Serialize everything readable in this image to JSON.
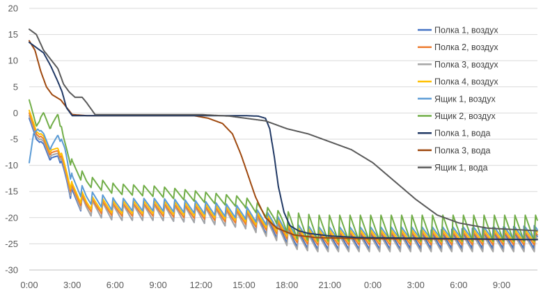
{
  "chart_data": {
    "type": "line",
    "title": "",
    "xlabel": "",
    "ylabel": "",
    "ylim": [
      -30,
      20
    ],
    "yticks": [
      -30,
      -25,
      -20,
      -15,
      -10,
      -5,
      0,
      5,
      10,
      15,
      20
    ],
    "xlim_hours": [
      0,
      35.5
    ],
    "xticks": [
      "0:00",
      "3:00",
      "6:00",
      "9:00",
      "12:00",
      "15:00",
      "18:00",
      "21:00",
      "0:00",
      "3:00",
      "6:00",
      "9:00"
    ],
    "grid": "horizontal",
    "legend_position": "right",
    "series": [
      {
        "name": "Полка 1, воздух",
        "color": "#4472C4",
        "base": [
          [
            0,
            -1
          ],
          [
            0.5,
            -5
          ],
          [
            1,
            -6
          ],
          [
            1.5,
            -9
          ],
          [
            2,
            -8
          ],
          [
            2.3,
            -10
          ],
          [
            3,
            -16
          ],
          [
            4,
            -18
          ],
          [
            6,
            -19
          ],
          [
            9,
            -19
          ],
          [
            12,
            -19.5
          ],
          [
            15,
            -20.5
          ],
          [
            17,
            -22
          ],
          [
            18.5,
            -24
          ],
          [
            20,
            -24.5
          ],
          [
            23,
            -24.5
          ],
          [
            26,
            -24.5
          ],
          [
            35.5,
            -24.5
          ]
        ],
        "osc": [
          [
            0,
            0
          ],
          [
            2.3,
            0.5
          ],
          [
            3,
            1.5
          ],
          [
            35.5,
            1.5
          ]
        ],
        "spikes": [
          [
            26,
            0
          ],
          [
            27,
            3.5
          ],
          [
            35.5,
            4.5
          ]
        ]
      },
      {
        "name": "Полка 2, воздух",
        "color": "#ED7D31",
        "base": [
          [
            0,
            0
          ],
          [
            0.5,
            -4
          ],
          [
            1,
            -5
          ],
          [
            1.5,
            -8
          ],
          [
            2,
            -7
          ],
          [
            2.3,
            -9
          ],
          [
            3,
            -15
          ],
          [
            4,
            -17.5
          ],
          [
            6,
            -18.5
          ],
          [
            9,
            -18.5
          ],
          [
            12,
            -19
          ],
          [
            15,
            -20
          ],
          [
            17,
            -21.5
          ],
          [
            18.5,
            -23.5
          ],
          [
            20,
            -24
          ],
          [
            35.5,
            -24
          ]
        ],
        "osc": [
          [
            0,
            0
          ],
          [
            2.3,
            0.5
          ],
          [
            3,
            1.2
          ],
          [
            35.5,
            1.2
          ]
        ]
      },
      {
        "name": "Полка 3, воздух",
        "color": "#A5A5A5",
        "base": [
          [
            0,
            -0.5
          ],
          [
            0.5,
            -4.5
          ],
          [
            1,
            -5.5
          ],
          [
            1.5,
            -8.5
          ],
          [
            2,
            -7.5
          ],
          [
            2.3,
            -9.5
          ],
          [
            3,
            -15.5
          ],
          [
            4,
            -18
          ],
          [
            6,
            -19
          ],
          [
            9,
            -19
          ],
          [
            12,
            -19.5
          ],
          [
            15,
            -20.5
          ],
          [
            17,
            -22.5
          ],
          [
            18.5,
            -24.5
          ],
          [
            20,
            -25
          ],
          [
            35.5,
            -25
          ]
        ],
        "osc": [
          [
            0,
            0
          ],
          [
            2.3,
            0.5
          ],
          [
            3,
            1.5
          ],
          [
            35.5,
            1.5
          ]
        ]
      },
      {
        "name": "Полка 4, воздух",
        "color": "#FFC000",
        "base": [
          [
            0,
            0.5
          ],
          [
            0.5,
            -3.5
          ],
          [
            1,
            -4.5
          ],
          [
            1.5,
            -7.5
          ],
          [
            2,
            -6.5
          ],
          [
            2.3,
            -8.5
          ],
          [
            3,
            -14.5
          ],
          [
            4,
            -17
          ],
          [
            6,
            -18
          ],
          [
            9,
            -18
          ],
          [
            12,
            -18.5
          ],
          [
            15,
            -19.5
          ],
          [
            17,
            -21
          ],
          [
            18.5,
            -23
          ],
          [
            20,
            -23.5
          ],
          [
            35.5,
            -23.5
          ]
        ],
        "osc": [
          [
            0,
            0
          ],
          [
            2.3,
            0.5
          ],
          [
            3,
            1.2
          ],
          [
            35.5,
            1.2
          ]
        ]
      },
      {
        "name": "Ящик 1, воздух",
        "color": "#5B9BD5",
        "base": [
          [
            0,
            -9.5
          ],
          [
            0.3,
            -4
          ],
          [
            0.6,
            -3
          ],
          [
            1,
            -4
          ],
          [
            1.5,
            -7
          ],
          [
            2,
            -4
          ],
          [
            2.5,
            -7
          ],
          [
            3,
            -13
          ],
          [
            4,
            -16
          ],
          [
            6,
            -17.5
          ],
          [
            9,
            -17.5
          ],
          [
            12,
            -18
          ],
          [
            15,
            -19
          ],
          [
            17,
            -20.5
          ],
          [
            18.5,
            -22.5
          ],
          [
            20,
            -23
          ],
          [
            35.5,
            -23
          ]
        ],
        "osc": [
          [
            0,
            0
          ],
          [
            2.3,
            0.5
          ],
          [
            3,
            1.2
          ],
          [
            35.5,
            1.2
          ]
        ]
      },
      {
        "name": "Ящик 2, воздух",
        "color": "#70AD47",
        "base": [
          [
            0,
            2.5
          ],
          [
            0.5,
            -2.5
          ],
          [
            1,
            0
          ],
          [
            1.5,
            -3
          ],
          [
            2,
            0
          ],
          [
            2.4,
            -5
          ],
          [
            3,
            -10
          ],
          [
            4,
            -13
          ],
          [
            6,
            -14.5
          ],
          [
            9,
            -15
          ],
          [
            12,
            -16
          ],
          [
            15,
            -17
          ],
          [
            17,
            -19.5
          ],
          [
            18.5,
            -21.5
          ],
          [
            20,
            -22
          ],
          [
            35.5,
            -22
          ]
        ],
        "osc": [
          [
            0,
            0
          ],
          [
            2.3,
            0.5
          ],
          [
            3,
            1
          ],
          [
            17,
            1
          ],
          [
            18.5,
            2.5
          ],
          [
            35.5,
            2.5
          ]
        ]
      },
      {
        "name": "Полка 1, вода",
        "color": "#203864",
        "base": [
          [
            0,
            13.5
          ],
          [
            0.5,
            12.5
          ],
          [
            1,
            11.5
          ],
          [
            1.5,
            9
          ],
          [
            2,
            6
          ],
          [
            2.3,
            4
          ],
          [
            2.6,
            1
          ],
          [
            3,
            -0.5
          ],
          [
            5,
            -0.5
          ],
          [
            10,
            -0.5
          ],
          [
            15,
            -0.5
          ],
          [
            16,
            -0.6
          ],
          [
            16.5,
            -1
          ],
          [
            16.8,
            -3
          ],
          [
            17.1,
            -8
          ],
          [
            17.4,
            -14
          ],
          [
            17.8,
            -19
          ],
          [
            18.2,
            -21.5
          ],
          [
            18.8,
            -22.5
          ],
          [
            19.5,
            -23
          ],
          [
            21,
            -23.5
          ],
          [
            23,
            -23.8
          ],
          [
            35.5,
            -24.2
          ]
        ],
        "osc": [
          [
            0,
            0
          ],
          [
            35.5,
            0
          ]
        ]
      },
      {
        "name": "Полка 3, вода",
        "color": "#9E480E",
        "base": [
          [
            0,
            13.8
          ],
          [
            0.4,
            12
          ],
          [
            0.8,
            8
          ],
          [
            1.2,
            5
          ],
          [
            1.6,
            3.5
          ],
          [
            2.2,
            2.5
          ],
          [
            3,
            -0.3
          ],
          [
            4,
            -0.5
          ],
          [
            10,
            -0.5
          ],
          [
            11.5,
            -0.5
          ],
          [
            12.5,
            -1
          ],
          [
            13.5,
            -2
          ],
          [
            14.2,
            -4
          ],
          [
            14.8,
            -8
          ],
          [
            15.3,
            -12
          ],
          [
            15.8,
            -16
          ],
          [
            16.5,
            -20
          ],
          [
            17.3,
            -22
          ],
          [
            18.5,
            -23.3
          ],
          [
            20,
            -23.8
          ],
          [
            23,
            -24
          ],
          [
            35.5,
            -24.2
          ]
        ],
        "osc": [
          [
            0,
            0
          ],
          [
            35.5,
            0
          ]
        ]
      },
      {
        "name": "Ящик 1, вода",
        "color": "#595959",
        "base": [
          [
            0,
            16
          ],
          [
            0.5,
            15
          ],
          [
            1,
            12
          ],
          [
            2,
            8.5
          ],
          [
            2.4,
            5.5
          ],
          [
            2.8,
            4
          ],
          [
            3.2,
            3
          ],
          [
            3.7,
            3
          ],
          [
            4,
            2
          ],
          [
            4.6,
            -0.3
          ],
          [
            6,
            -0.3
          ],
          [
            12,
            -0.3
          ],
          [
            14,
            -0.6
          ],
          [
            16.5,
            -1.5
          ],
          [
            18,
            -3
          ],
          [
            19.5,
            -4
          ],
          [
            21,
            -5.5
          ],
          [
            22.5,
            -7
          ],
          [
            24,
            -9.5
          ],
          [
            25.5,
            -13
          ],
          [
            27,
            -16.5
          ],
          [
            28.5,
            -19.5
          ],
          [
            30,
            -21
          ],
          [
            32,
            -22
          ],
          [
            35.5,
            -22.5
          ]
        ],
        "osc": [
          [
            0,
            0
          ],
          [
            35.5,
            0
          ]
        ]
      }
    ],
    "osc_period_hours": 0.72
  },
  "legend_title_hidden": ""
}
